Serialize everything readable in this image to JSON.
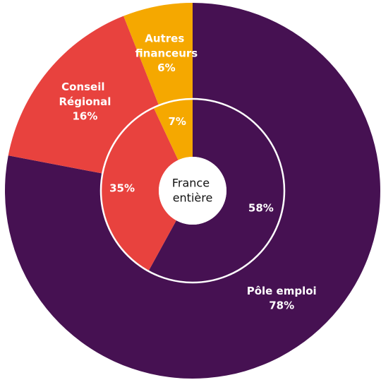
{
  "chart_data": {
    "type": "pie",
    "categories": [
      "Pôle emploi",
      "Conseil Régional",
      "Autres financeurs"
    ],
    "colors": [
      "#461152",
      "#e8423e",
      "#f5a800"
    ],
    "center_label": "France entière",
    "series": [
      {
        "values": [
          78,
          16,
          6
        ],
        "value_labels": [
          "78%",
          "16%",
          "6%"
        ]
      },
      {
        "values": [
          58,
          35,
          7
        ],
        "value_labels": [
          "58%",
          "35%",
          "7%"
        ]
      }
    ]
  }
}
